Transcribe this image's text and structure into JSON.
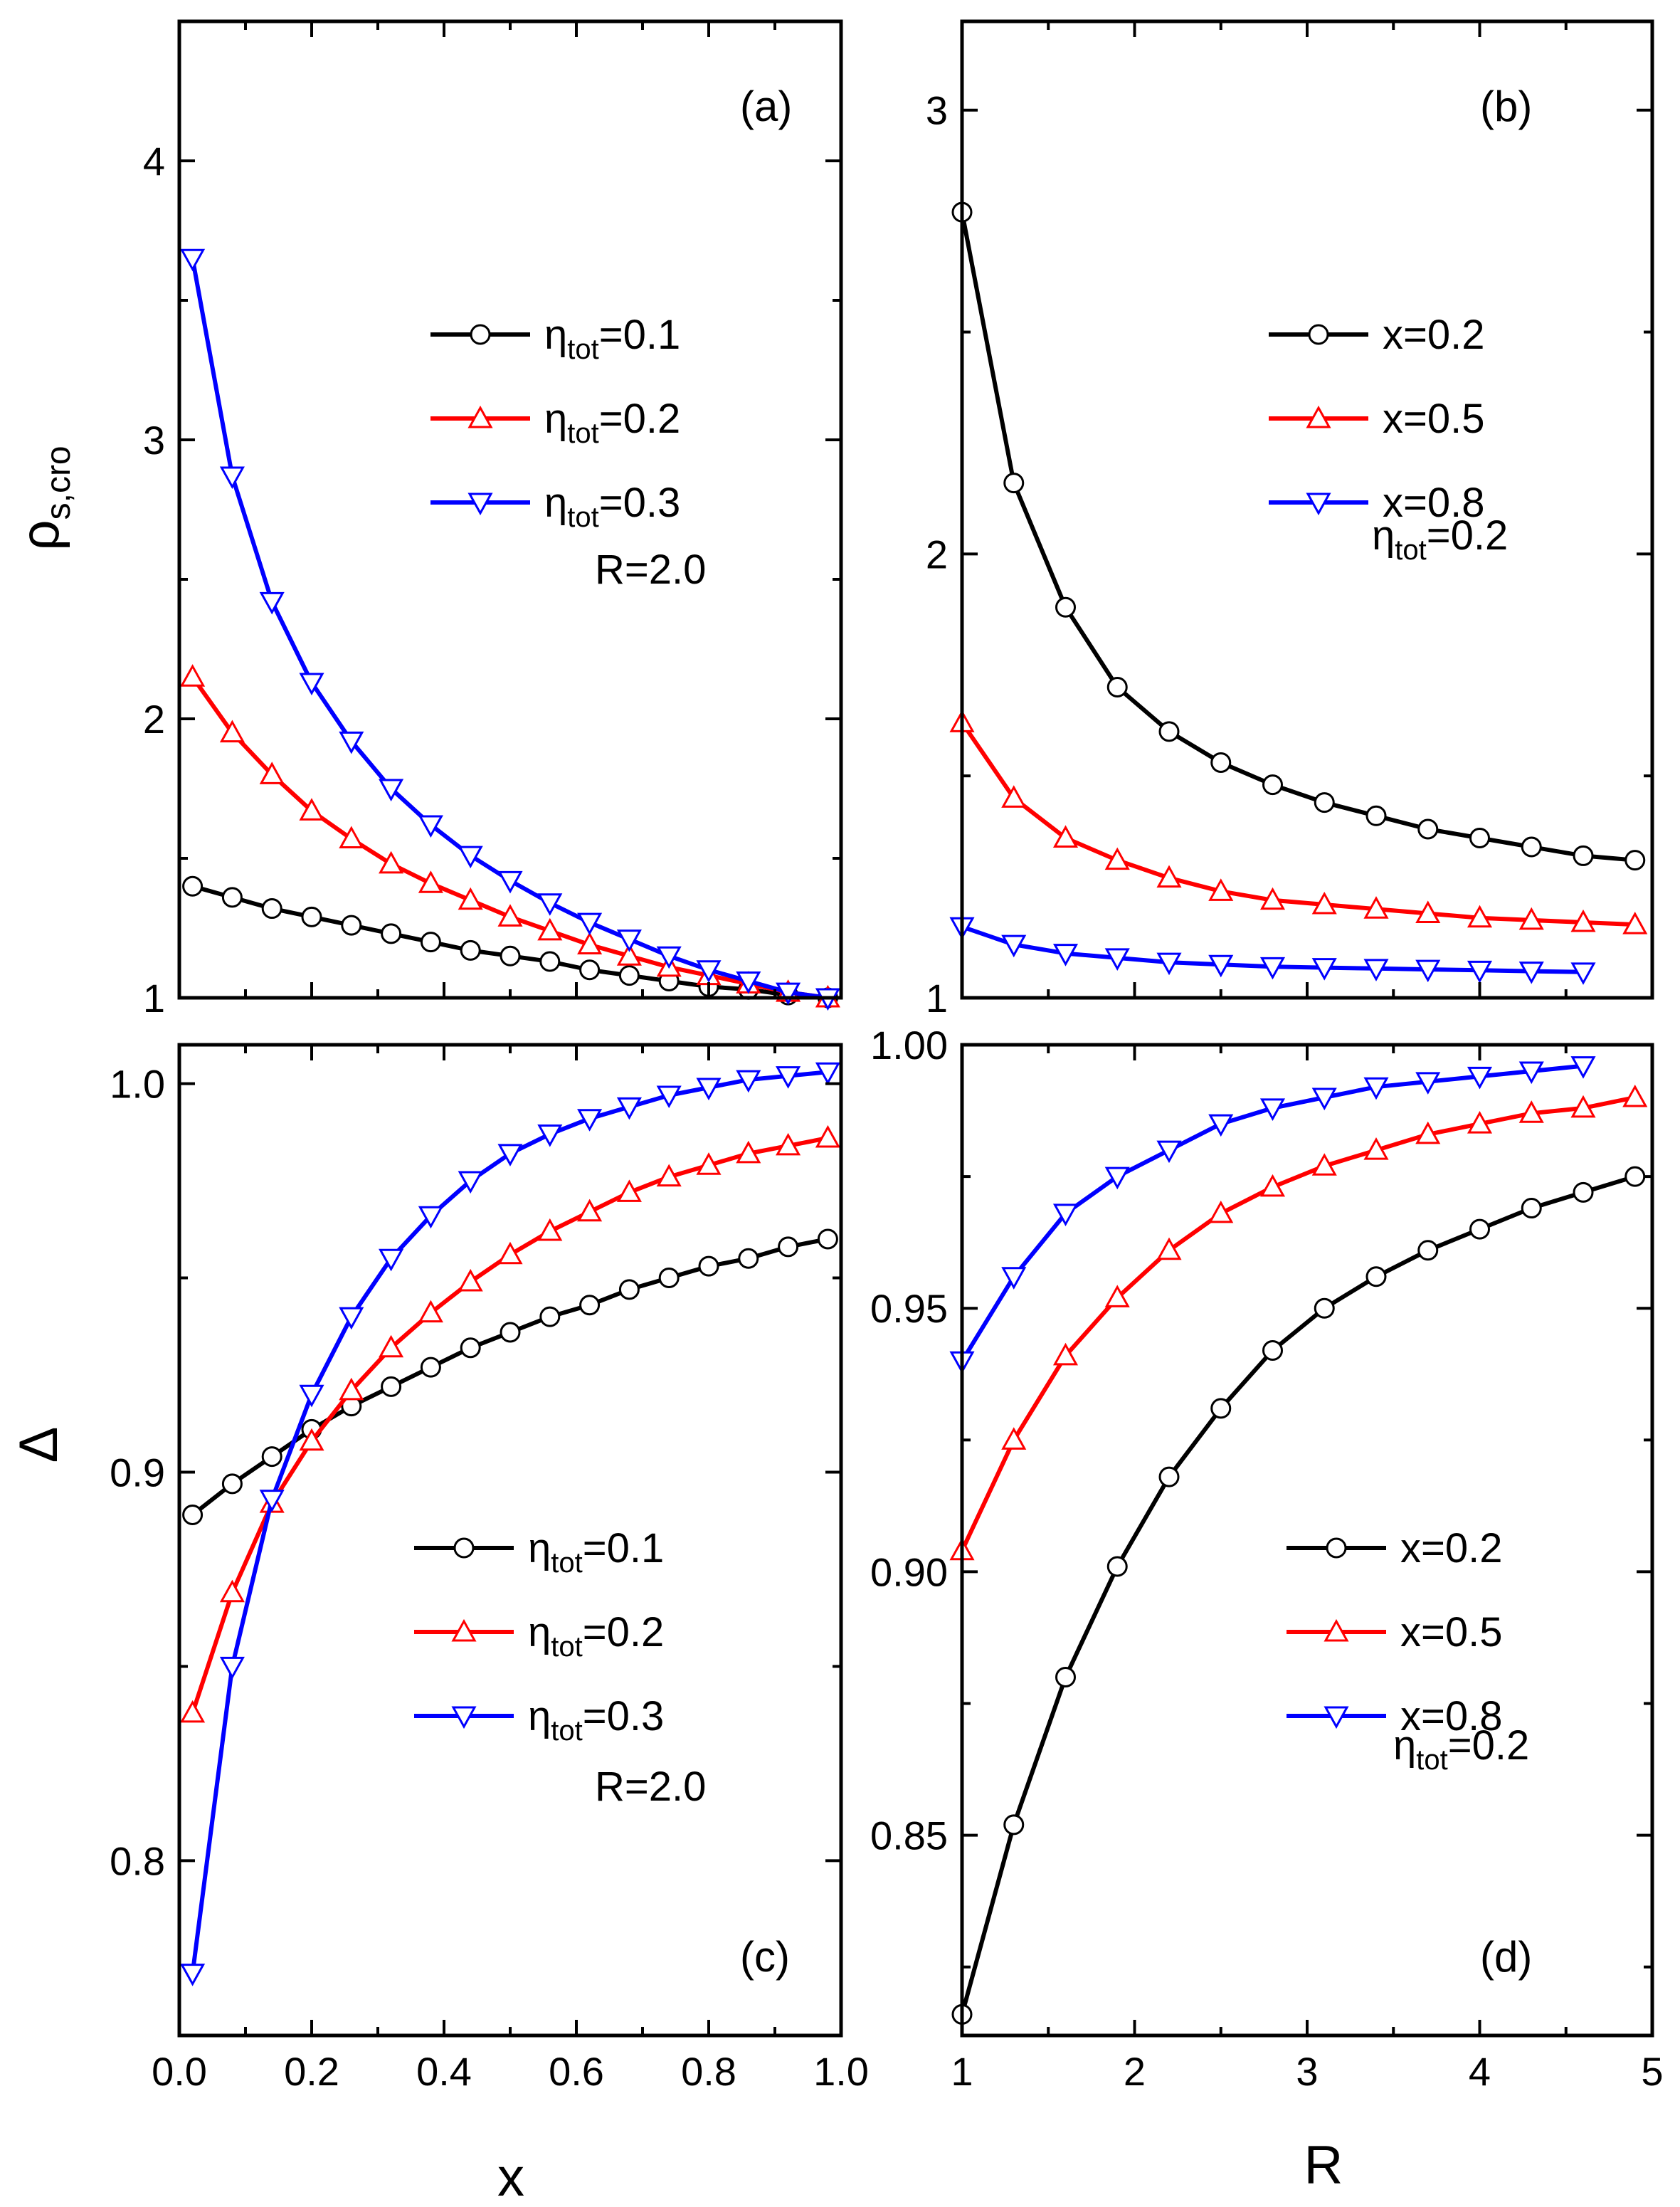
{
  "figure": {
    "x_axis_title": "x",
    "r_axis_title": "R",
    "rho_axis_title": {
      "main": "ρ",
      "sub": "s,cro"
    },
    "delta_axis_title": "Δ"
  },
  "colors": {
    "black": "#000000",
    "red": "#ff0000",
    "blue": "#0000ff"
  },
  "chart_data": [
    {
      "id": "a",
      "type": "line",
      "panel_label": "(a)",
      "xlabel": "",
      "ylabel": "ρ_s,cro",
      "xlim": [
        0,
        1.0
      ],
      "ylim": [
        1,
        4.5
      ],
      "x_ticks": [],
      "y_ticks": [
        "1",
        "2",
        "3",
        "4"
      ],
      "y_tick_values": [
        1,
        2,
        3,
        4
      ],
      "note": "R=2.0",
      "series": [
        {
          "name": "η_tot=0.1",
          "label_main": "η",
          "label_sub": "tot",
          "label_rest": "=0.1",
          "color": "#000000",
          "marker": "circle",
          "x": [
            0.02,
            0.08,
            0.14,
            0.2,
            0.26,
            0.32,
            0.38,
            0.44,
            0.5,
            0.56,
            0.62,
            0.68,
            0.74,
            0.8,
            0.86,
            0.92,
            0.98
          ],
          "y": [
            1.4,
            1.36,
            1.32,
            1.29,
            1.26,
            1.23,
            1.2,
            1.17,
            1.15,
            1.13,
            1.1,
            1.08,
            1.06,
            1.04,
            1.03,
            1.01,
            1.0
          ]
        },
        {
          "name": "η_tot=0.2",
          "label_main": "η",
          "label_sub": "tot",
          "label_rest": "=0.2",
          "color": "#ff0000",
          "marker": "triangle-up",
          "x": [
            0.02,
            0.08,
            0.14,
            0.2,
            0.26,
            0.32,
            0.38,
            0.44,
            0.5,
            0.56,
            0.62,
            0.68,
            0.74,
            0.8,
            0.86,
            0.92,
            0.98
          ],
          "y": [
            2.15,
            1.95,
            1.8,
            1.67,
            1.57,
            1.48,
            1.41,
            1.35,
            1.29,
            1.24,
            1.19,
            1.15,
            1.11,
            1.08,
            1.05,
            1.02,
            1.0
          ]
        },
        {
          "name": "η_tot=0.3",
          "label_main": "η",
          "label_sub": "tot",
          "label_rest": "=0.3",
          "color": "#0000ff",
          "marker": "triangle-down",
          "x": [
            0.02,
            0.08,
            0.14,
            0.2,
            0.26,
            0.32,
            0.38,
            0.44,
            0.5,
            0.56,
            0.62,
            0.68,
            0.74,
            0.8,
            0.86,
            0.92,
            0.98
          ],
          "y": [
            3.65,
            2.87,
            2.42,
            2.13,
            1.92,
            1.75,
            1.62,
            1.51,
            1.42,
            1.34,
            1.27,
            1.21,
            1.15,
            1.1,
            1.06,
            1.02,
            1.0
          ]
        }
      ]
    },
    {
      "id": "b",
      "type": "line",
      "panel_label": "(b)",
      "xlabel": "",
      "ylabel": "",
      "xlim": [
        1,
        5
      ],
      "ylim": [
        1,
        3.2
      ],
      "x_ticks": [],
      "y_ticks": [
        "1",
        "2",
        "3"
      ],
      "y_tick_values": [
        1,
        2,
        3
      ],
      "note_main": "η",
      "note_sub": "tot",
      "note_rest": "=0.2",
      "series": [
        {
          "name": "x=0.2",
          "label_rest": "x=0.2",
          "color": "#000000",
          "marker": "circle",
          "x": [
            1.0,
            1.3,
            1.6,
            1.9,
            2.2,
            2.5,
            2.8,
            3.1,
            3.4,
            3.7,
            4.0,
            4.3,
            4.6,
            4.9
          ],
          "y": [
            2.77,
            2.16,
            1.88,
            1.7,
            1.6,
            1.53,
            1.48,
            1.44,
            1.41,
            1.38,
            1.36,
            1.34,
            1.32,
            1.31
          ]
        },
        {
          "name": "x=0.5",
          "label_rest": "x=0.5",
          "color": "#ff0000",
          "marker": "triangle-up",
          "x": [
            1.0,
            1.3,
            1.6,
            1.9,
            2.2,
            2.5,
            2.8,
            3.1,
            3.4,
            3.7,
            4.0,
            4.3,
            4.6,
            4.9
          ],
          "y": [
            1.62,
            1.45,
            1.36,
            1.31,
            1.27,
            1.24,
            1.22,
            1.21,
            1.2,
            1.19,
            1.18,
            1.175,
            1.17,
            1.165
          ]
        },
        {
          "name": "x=0.8",
          "label_rest": "x=0.8",
          "color": "#0000ff",
          "marker": "triangle-down",
          "x": [
            1.0,
            1.3,
            1.6,
            1.9,
            2.2,
            2.5,
            2.8,
            3.1,
            3.4,
            3.7,
            4.0,
            4.3,
            4.6
          ],
          "y": [
            1.16,
            1.12,
            1.1,
            1.09,
            1.08,
            1.075,
            1.07,
            1.068,
            1.066,
            1.064,
            1.062,
            1.06,
            1.058
          ]
        }
      ]
    },
    {
      "id": "c",
      "type": "line",
      "panel_label": "(c)",
      "xlabel": "x",
      "ylabel": "Δ",
      "xlim": [
        0,
        1.0
      ],
      "ylim": [
        0.755,
        1.01
      ],
      "x_ticks": [
        "0.0",
        "0.2",
        "0.4",
        "0.6",
        "0.8",
        "1.0"
      ],
      "x_tick_values": [
        0,
        0.2,
        0.4,
        0.6,
        0.8,
        1.0
      ],
      "y_ticks": [
        "0.8",
        "0.9",
        "1.0"
      ],
      "y_tick_values": [
        0.8,
        0.9,
        1.0
      ],
      "note": "R=2.0",
      "series": [
        {
          "name": "η_tot=0.1",
          "label_main": "η",
          "label_sub": "tot",
          "label_rest": "=0.1",
          "color": "#000000",
          "marker": "circle",
          "x": [
            0.02,
            0.08,
            0.14,
            0.2,
            0.26,
            0.32,
            0.38,
            0.44,
            0.5,
            0.56,
            0.62,
            0.68,
            0.74,
            0.8,
            0.86,
            0.92,
            0.98
          ],
          "y": [
            0.889,
            0.897,
            0.904,
            0.911,
            0.917,
            0.922,
            0.927,
            0.932,
            0.936,
            0.94,
            0.943,
            0.947,
            0.95,
            0.953,
            0.955,
            0.958,
            0.96
          ]
        },
        {
          "name": "η_tot=0.2",
          "label_main": "η",
          "label_sub": "tot",
          "label_rest": "=0.2",
          "color": "#ff0000",
          "marker": "triangle-up",
          "x": [
            0.02,
            0.08,
            0.14,
            0.2,
            0.26,
            0.32,
            0.38,
            0.44,
            0.5,
            0.56,
            0.62,
            0.68,
            0.74,
            0.8,
            0.86,
            0.92,
            0.98
          ],
          "y": [
            0.838,
            0.869,
            0.892,
            0.908,
            0.921,
            0.932,
            0.941,
            0.949,
            0.956,
            0.962,
            0.967,
            0.972,
            0.976,
            0.979,
            0.982,
            0.984,
            0.986
          ]
        },
        {
          "name": "η_tot=0.3",
          "label_main": "η",
          "label_sub": "tot",
          "label_rest": "=0.3",
          "color": "#0000ff",
          "marker": "triangle-down",
          "x": [
            0.02,
            0.08,
            0.14,
            0.2,
            0.26,
            0.32,
            0.38,
            0.44,
            0.5,
            0.56,
            0.62,
            0.68,
            0.74,
            0.8,
            0.86,
            0.92,
            0.98
          ],
          "y": [
            0.771,
            0.85,
            0.893,
            0.92,
            0.94,
            0.955,
            0.966,
            0.975,
            0.982,
            0.987,
            0.991,
            0.994,
            0.997,
            0.999,
            1.001,
            1.002,
            1.003
          ]
        }
      ]
    },
    {
      "id": "d",
      "type": "line",
      "panel_label": "(d)",
      "xlabel": "R",
      "ylabel": "",
      "xlim": [
        1,
        5
      ],
      "ylim": [
        0.812,
        1.0
      ],
      "x_ticks": [
        "1",
        "2",
        "3",
        "4",
        "5"
      ],
      "x_tick_values": [
        1,
        2,
        3,
        4,
        5
      ],
      "y_ticks": [
        "0.85",
        "0.90",
        "0.95",
        "1.00"
      ],
      "y_tick_values": [
        0.85,
        0.9,
        0.95,
        1.0
      ],
      "note_main": "η",
      "note_sub": "tot",
      "note_rest": "=0.2",
      "series": [
        {
          "name": "x=0.2",
          "label_rest": "x=0.2",
          "color": "#000000",
          "marker": "circle",
          "x": [
            1.0,
            1.3,
            1.6,
            1.9,
            2.2,
            2.5,
            2.8,
            3.1,
            3.4,
            3.7,
            4.0,
            4.3,
            4.6,
            4.9
          ],
          "y": [
            0.816,
            0.852,
            0.88,
            0.901,
            0.918,
            0.931,
            0.942,
            0.95,
            0.956,
            0.961,
            0.965,
            0.969,
            0.972,
            0.975
          ]
        },
        {
          "name": "x=0.5",
          "label_rest": "x=0.5",
          "color": "#ff0000",
          "marker": "triangle-up",
          "x": [
            1.0,
            1.3,
            1.6,
            1.9,
            2.2,
            2.5,
            2.8,
            3.1,
            3.4,
            3.7,
            4.0,
            4.3,
            4.6,
            4.9
          ],
          "y": [
            0.904,
            0.925,
            0.941,
            0.952,
            0.961,
            0.968,
            0.973,
            0.977,
            0.98,
            0.983,
            0.985,
            0.987,
            0.988,
            0.99
          ]
        },
        {
          "name": "x=0.8",
          "label_rest": "x=0.8",
          "color": "#0000ff",
          "marker": "triangle-down",
          "x": [
            1.0,
            1.3,
            1.6,
            1.9,
            2.2,
            2.5,
            2.8,
            3.1,
            3.4,
            3.7,
            4.0,
            4.3,
            4.6
          ],
          "y": [
            0.94,
            0.956,
            0.968,
            0.975,
            0.98,
            0.985,
            0.988,
            0.99,
            0.992,
            0.993,
            0.994,
            0.995,
            0.996
          ]
        }
      ]
    }
  ]
}
